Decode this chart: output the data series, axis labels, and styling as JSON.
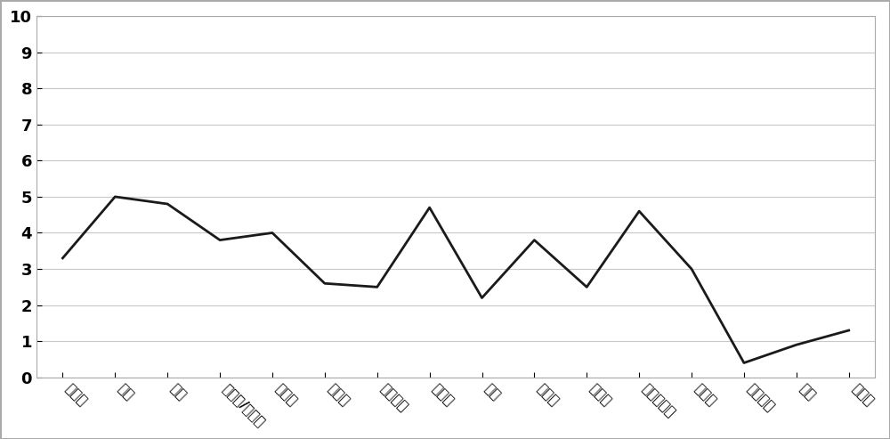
{
  "categories": [
    "合成味",
    "蜡味",
    "油味",
    "塑料味/橡胶味",
    "烘烤味",
    "白垩味",
    "化学品味",
    "金属味",
    "灰味",
    "油炸味",
    "淀粉味",
    "烧焦的油味",
    "机油味",
    "提亚素味",
    "乳味",
    "腐臭味"
  ],
  "values": [
    3.3,
    5.0,
    4.8,
    3.8,
    4.0,
    2.6,
    2.5,
    4.7,
    2.2,
    3.8,
    2.5,
    4.6,
    3.0,
    0.4,
    0.9,
    1.3
  ],
  "line_color": "#1a1a1a",
  "background_color": "#ffffff",
  "grid_color": "#c8c8c8",
  "border_color": "#aaaaaa",
  "ylim": [
    0,
    10
  ],
  "yticks": [
    0,
    1,
    2,
    3,
    4,
    5,
    6,
    7,
    8,
    9,
    10
  ],
  "tick_fontsize": 13,
  "label_fontsize": 11,
  "line_width": 2.0,
  "rotation": -45
}
